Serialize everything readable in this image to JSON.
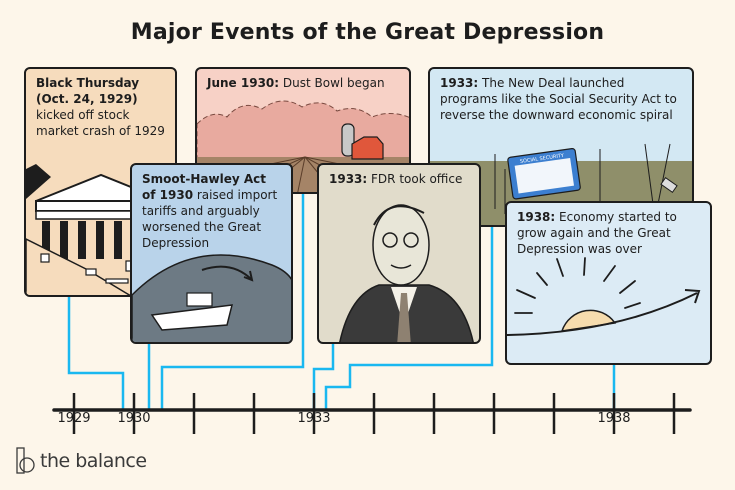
{
  "title": "Major Events of the Great Depression",
  "events": [
    {
      "bold": "Black Thursday (Oct. 24, 1929)",
      "text": " kicked off stock market crash of 1929",
      "bg": "#f6dcbd"
    },
    {
      "bold": "June 1930:",
      "text": " Dust Bowl began",
      "bg": "#f7d1c6"
    },
    {
      "bold": "Smoot-Hawley Act of 1930",
      "text": " raised import tariffs and arguably worsened the Great Depression",
      "bg": "#b9d3ea"
    },
    {
      "bold": "1933:",
      "text": " FDR took office",
      "bg": "#e1dccb"
    },
    {
      "bold": "1933:",
      "text": " The New Deal launched programs like the Social Security Act to reverse the downward economic spiral",
      "bg": "#d3e8f3",
      "card_label": "SOCIAL SECURITY"
    },
    {
      "bold": "1938:",
      "text": " Economy started to grow again and the Great Depression was over",
      "bg": "#dcebf5"
    }
  ],
  "timeline": {
    "labels": [
      "1929",
      "1930",
      "1933",
      "1938"
    ],
    "connector_color": "#1ab8f0"
  },
  "logo": {
    "text": "the balance"
  }
}
